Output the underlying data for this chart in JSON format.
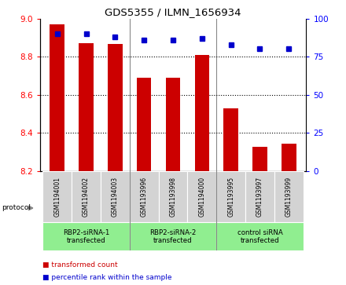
{
  "title": "GDS5355 / ILMN_1656934",
  "samples": [
    "GSM1194001",
    "GSM1194002",
    "GSM1194003",
    "GSM1193996",
    "GSM1193998",
    "GSM1194000",
    "GSM1193995",
    "GSM1193997",
    "GSM1193999"
  ],
  "bar_values": [
    8.97,
    8.87,
    8.865,
    8.69,
    8.69,
    8.81,
    8.53,
    8.325,
    8.345
  ],
  "dot_values": [
    90,
    90,
    88,
    86,
    86,
    87,
    83,
    80,
    80
  ],
  "bar_color": "#cc0000",
  "dot_color": "#0000cc",
  "ylim_left": [
    8.2,
    9.0
  ],
  "ylim_right": [
    0,
    100
  ],
  "yticks_left": [
    8.2,
    8.4,
    8.6,
    8.8,
    9.0
  ],
  "yticks_right": [
    0,
    25,
    50,
    75,
    100
  ],
  "group_labels": [
    "RBP2-siRNA-1\ntransfected",
    "RBP2-siRNA-2\ntransfected",
    "control siRNA\ntransfected"
  ],
  "group_ranges": [
    [
      0,
      2
    ],
    [
      3,
      5
    ],
    [
      6,
      8
    ]
  ],
  "group_color": "#90ee90",
  "sample_box_color": "#d3d3d3",
  "protocol_label": "protocol",
  "legend_bar_label": "transformed count",
  "legend_dot_label": "percentile rank within the sample",
  "bar_width": 0.5,
  "grid_yticks": [
    8.4,
    8.6,
    8.8
  ],
  "group_sep": [
    2.5,
    5.5
  ]
}
